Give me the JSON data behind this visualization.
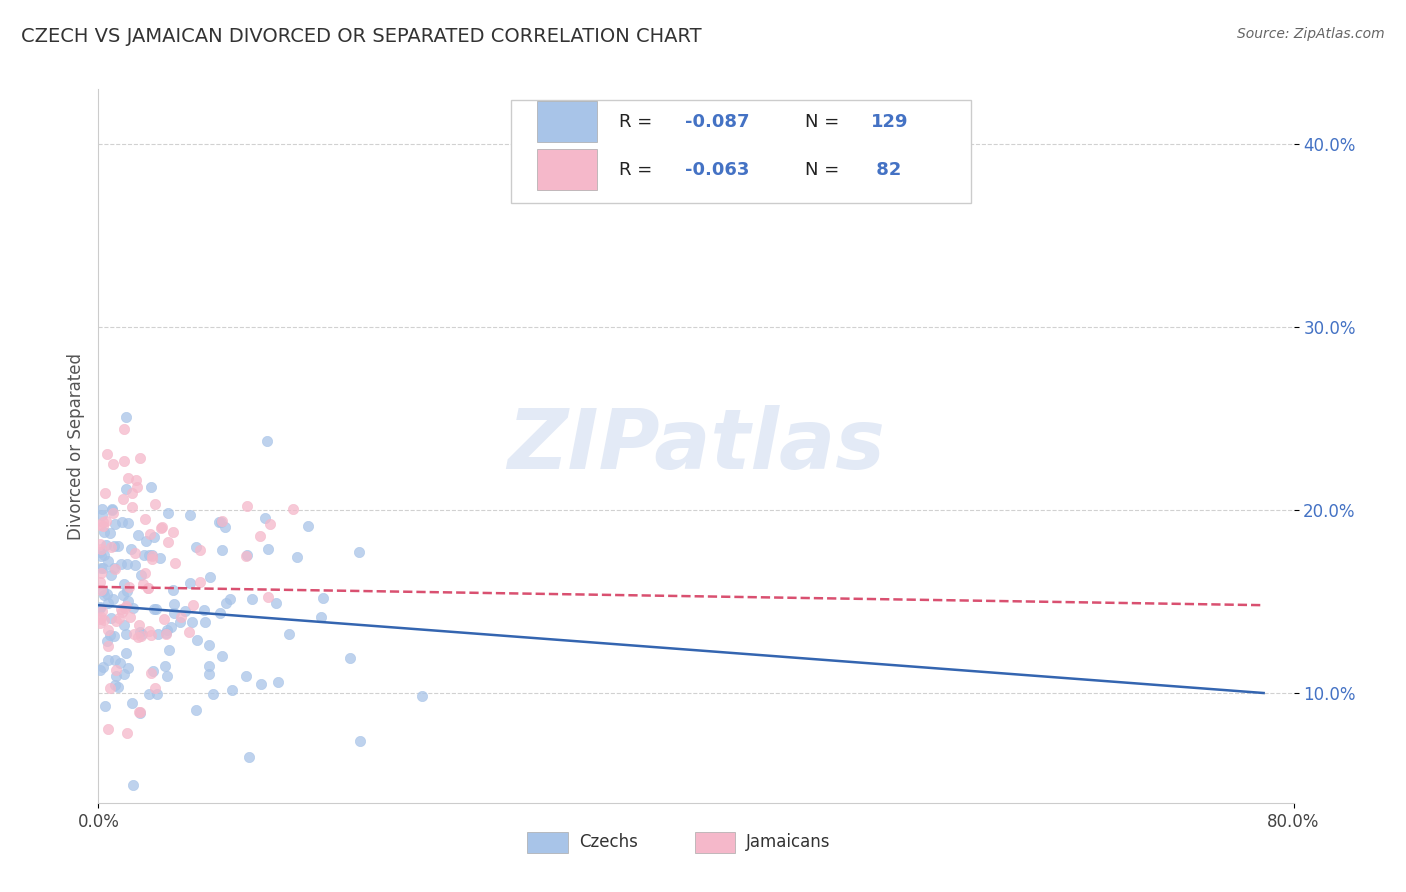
{
  "title": "CZECH VS JAMAICAN DIVORCED OR SEPARATED CORRELATION CHART",
  "source_text": "Source: ZipAtlas.com",
  "ylabel": "Divorced or Separated",
  "xmin": 0.0,
  "xmax": 0.8,
  "ymin": 0.04,
  "ymax": 0.43,
  "czech_R": -0.087,
  "czech_N": 129,
  "jamaican_R": -0.063,
  "jamaican_N": 82,
  "czech_color": "#a8c4e8",
  "jamaican_color": "#f5b8ca",
  "czech_line_color": "#3465b0",
  "jamaican_line_color": "#d95070",
  "czech_trend_x0": 0.0,
  "czech_trend_x1": 0.78,
  "czech_trend_y0": 0.148,
  "czech_trend_y1": 0.1,
  "jamaican_trend_x0": 0.0,
  "jamaican_trend_x1": 0.78,
  "jamaican_trend_y0": 0.158,
  "jamaican_trend_y1": 0.148,
  "watermark": "ZIPatlas",
  "ytick_vals": [
    0.1,
    0.2,
    0.3,
    0.4
  ],
  "ytick_labels": [
    "10.0%",
    "20.0%",
    "30.0%",
    "40.0%"
  ],
  "xtick_vals": [
    0.0,
    0.8
  ],
  "xtick_labels": [
    "0.0%",
    "80.0%"
  ],
  "background_color": "#ffffff",
  "grid_color": "#cccccc",
  "legend_R1": "R = -0.087",
  "legend_N1": "N = 129",
  "legend_R2": "R = -0.063",
  "legend_N2": "N =  82",
  "legend_label1": "Czechs",
  "legend_label2": "Jamaicans",
  "seed": 42
}
